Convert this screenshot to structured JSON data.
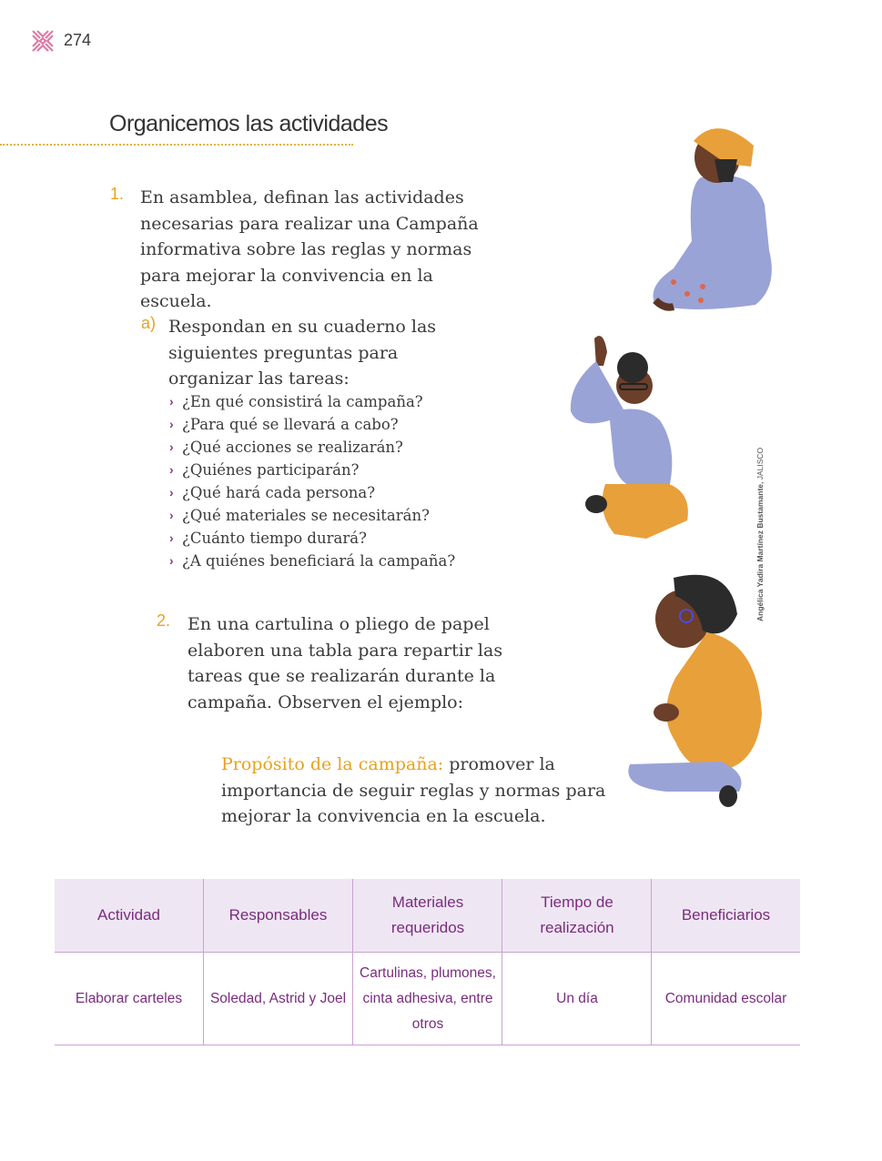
{
  "header": {
    "page_number": "274"
  },
  "section": {
    "title": "Organicemos las actividades"
  },
  "item1": {
    "number": "1.",
    "text": "En asamblea, definan las actividades necesarias para realizar una Campaña informativa sobre las reglas y normas para mejorar la convivencia en la escuela.",
    "sub_a": {
      "letter": "a)",
      "text": "Respondan en su cuaderno las siguientes preguntas para organizar las tareas:",
      "questions": [
        "¿En qué consistirá la campaña?",
        "¿Para qué se llevará a cabo?",
        "¿Qué acciones se realizarán?",
        "¿Quiénes participarán?",
        "¿Qué hará cada persona?",
        "¿Qué materiales se necesitarán?",
        "¿Cuánto tiempo durará?",
        "¿A quiénes beneficiará la campaña?"
      ]
    }
  },
  "item2": {
    "number": "2.",
    "text": "En una cartulina o pliego de papel elaboren una tabla para repartir las tareas que se realizarán durante la campaña. Observen el ejemplo:"
  },
  "purpose": {
    "label": "Propósito de la campaña:",
    "text": " promover la importancia de seguir reglas y normas para mejorar la convivencia en la escuela."
  },
  "table": {
    "headers": [
      "Actividad",
      "Responsables",
      "Materiales requeridos",
      "Tiempo de realización",
      "Beneficiarios"
    ],
    "row": [
      "Elaborar carteles",
      "Soledad, Astrid y Joel",
      "Cartulinas, plumones, cinta adhesiva, entre otros",
      "Un día",
      "Comunidad escolar"
    ]
  },
  "credit": {
    "name": "Angélica Yadira Martínez Bustamante,",
    "place": " JALISCO"
  },
  "colors": {
    "accent_orange": "#e8a21e",
    "accent_purple": "#7a2c7e",
    "table_header_bg": "#efe6f3"
  }
}
